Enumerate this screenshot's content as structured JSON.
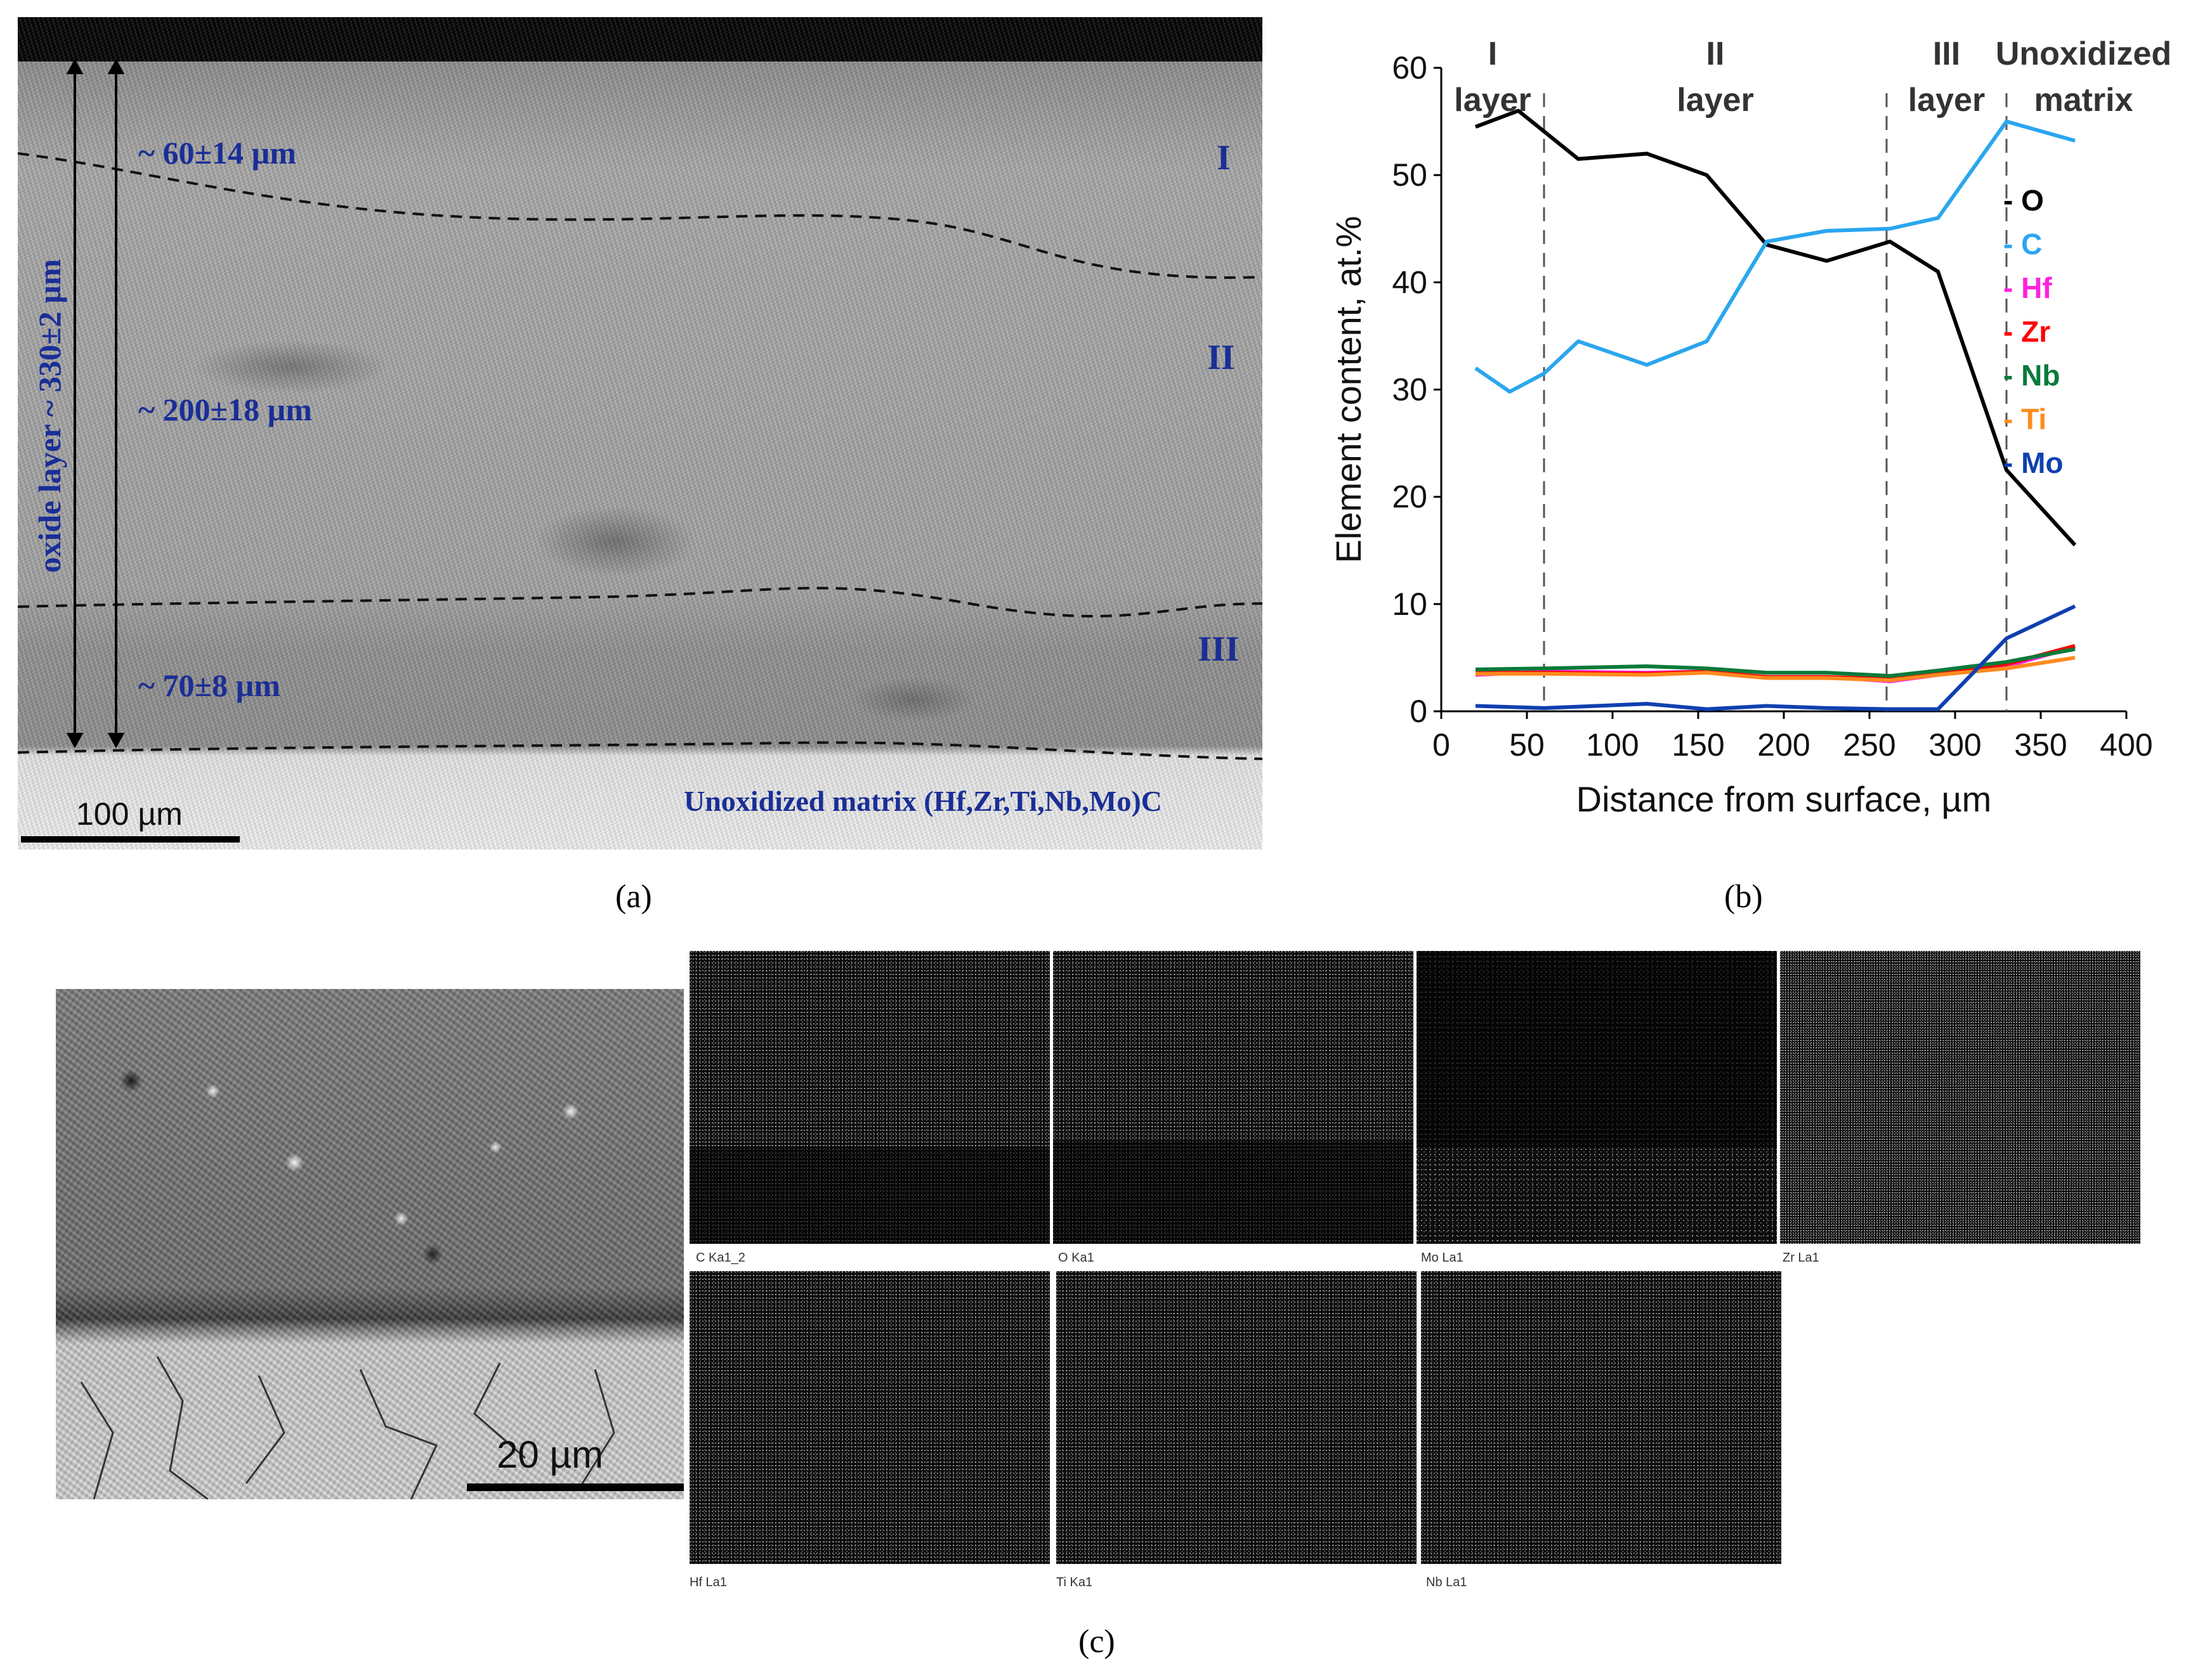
{
  "panel_a": {
    "labels": {
      "oxide_layer": "oxide layer ~ 330±2 µm",
      "layer1_thickness": "~ 60±14 µm",
      "layer2_thickness": "~ 200±18 µm",
      "layer3_thickness": "~ 70±8 µm",
      "roman1": "I",
      "roman2": "II",
      "roman3": "III",
      "matrix": "Unoxidized matrix (Hf,Zr,Ti,Nb,Mo)C"
    },
    "scale_bar": "100 µm",
    "caption": "(a)"
  },
  "panel_b": {
    "caption": "(b)",
    "legend": [
      {
        "label": "- O",
        "color": "#000000"
      },
      {
        "label": "- C",
        "color": "#2aa6ee"
      },
      {
        "label": "- Hf",
        "color": "#ff22dd"
      },
      {
        "label": "- Zr",
        "color": "#ff0000"
      },
      {
        "label": "- Nb",
        "color": "#0a7a3a"
      },
      {
        "label": "- Ti",
        "color": "#ff8a1e"
      },
      {
        "label": "- Mo",
        "color": "#1040b0"
      }
    ],
    "regions": [
      {
        "line1": "I",
        "line2": "layer"
      },
      {
        "line1": "II",
        "line2": "layer"
      },
      {
        "line1": "III",
        "line2": "layer"
      },
      {
        "line1": "Unoxidized",
        "line2": "matrix"
      }
    ]
  },
  "chart_data": {
    "type": "line",
    "xlabel": "Distance from surface, µm",
    "ylabel": "Element content, at.%",
    "xlim": [
      0,
      400
    ],
    "ylim": [
      0,
      60
    ],
    "xticks": [
      0,
      50,
      100,
      150,
      200,
      250,
      300,
      350,
      400
    ],
    "yticks": [
      0,
      10,
      20,
      30,
      40,
      50,
      60
    ],
    "region_boundaries": [
      60,
      260,
      330
    ],
    "series": [
      {
        "name": "O",
        "color": "#000000",
        "x": [
          20,
          45,
          80,
          120,
          155,
          190,
          225,
          262,
          290,
          330,
          370
        ],
        "y": [
          54.5,
          56,
          51.5,
          52,
          50,
          43.5,
          42,
          43.8,
          41,
          22.5,
          15.5
        ]
      },
      {
        "name": "C",
        "color": "#2aa6ee",
        "x": [
          20,
          40,
          60,
          80,
          120,
          155,
          190,
          225,
          262,
          290,
          330,
          370
        ],
        "y": [
          32,
          29.8,
          31.5,
          34.5,
          32.3,
          34.5,
          43.8,
          44.8,
          45,
          46,
          55,
          53.2
        ]
      },
      {
        "name": "Hf",
        "color": "#ff22dd",
        "x": [
          20,
          60,
          120,
          155,
          190,
          225,
          262,
          290,
          330,
          370
        ],
        "y": [
          3.4,
          3.7,
          3.6,
          3.7,
          3.2,
          3.2,
          2.8,
          3.4,
          4.2,
          6.0
        ]
      },
      {
        "name": "Zr",
        "color": "#ff0000",
        "x": [
          20,
          60,
          120,
          155,
          190,
          225,
          262,
          290,
          330,
          370
        ],
        "y": [
          3.6,
          3.6,
          3.5,
          3.7,
          3.2,
          3.2,
          3.0,
          3.6,
          4.4,
          6.1
        ]
      },
      {
        "name": "Nb",
        "color": "#0a7a3a",
        "x": [
          20,
          60,
          120,
          155,
          190,
          225,
          262,
          290,
          330,
          370
        ],
        "y": [
          3.9,
          4.0,
          4.2,
          4.0,
          3.6,
          3.6,
          3.3,
          3.8,
          4.6,
          5.8
        ]
      },
      {
        "name": "Ti",
        "color": "#ff8a1e",
        "x": [
          20,
          60,
          120,
          155,
          190,
          225,
          262,
          290,
          330,
          370
        ],
        "y": [
          3.5,
          3.5,
          3.4,
          3.6,
          3.1,
          3.1,
          2.9,
          3.4,
          4.0,
          5.0
        ]
      },
      {
        "name": "Mo",
        "color": "#1040b0",
        "x": [
          20,
          60,
          120,
          155,
          190,
          225,
          262,
          290,
          330,
          370
        ],
        "y": [
          0.5,
          0.3,
          0.7,
          0.2,
          0.5,
          0.3,
          0.2,
          0.2,
          6.8,
          9.8
        ]
      }
    ]
  },
  "panel_c": {
    "scale_bar": "20 µm",
    "caption": "(c)",
    "maps": [
      {
        "label": "C Ka1_2"
      },
      {
        "label": "O Ka1"
      },
      {
        "label": "Mo La1"
      },
      {
        "label": "Zr La1"
      },
      {
        "label": "Hf La1"
      },
      {
        "label": "Ti Ka1"
      },
      {
        "label": "Nb La1"
      }
    ]
  }
}
